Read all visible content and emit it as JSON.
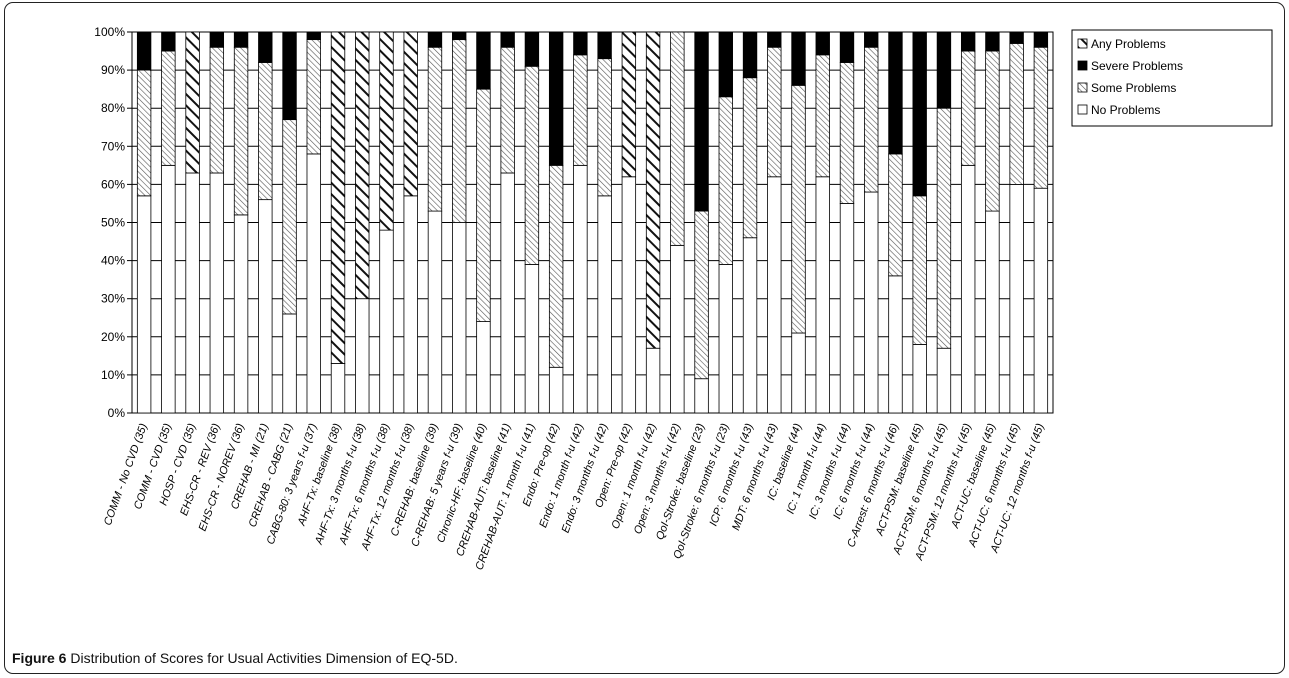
{
  "caption": {
    "label": "Figure 6",
    "text": " Distribution of Scores for Usual Activities Dimension of EQ-5D."
  },
  "chart_data": {
    "type": "bar",
    "stacked": true,
    "percent": true,
    "title": "",
    "xlabel": "",
    "ylabel": "",
    "ylim": [
      0,
      100
    ],
    "yticks": [
      "0%",
      "10%",
      "20%",
      "30%",
      "40%",
      "50%",
      "60%",
      "70%",
      "80%",
      "90%",
      "100%"
    ],
    "grid": true,
    "legend_position": "top-right",
    "legend": [
      {
        "name": "Any Problems",
        "key": "any"
      },
      {
        "name": "Severe Problems",
        "key": "severe"
      },
      {
        "name": "Some Problems",
        "key": "some"
      },
      {
        "name": "No Problems",
        "key": "none"
      }
    ],
    "categories": [
      "COMM - No CVD (35)",
      "COMM - CVD (35)",
      "HOSP - CVD (35)",
      "EHS-CR - REV (36)",
      "EHS-CR - NOREV (36)",
      "CREHAB - MI (21)",
      "CREHAB - CABG (21)",
      "CABG-80: 3 years f-u (37)",
      "AHF-Tx: baseline (38)",
      "AHF-Tx: 3 months f-u (38)",
      "AHF-Tx: 6 months f-u (38)",
      "AHF-Tx: 12 months f-u (38)",
      "C-REHAB: baseline (39)",
      "C-REHAB: 5 years f-u (39)",
      "Chronic-HF: baseline (40)",
      "CREHAB-AUT: baseline (41)",
      "CREHAB-AUT: 1 month f-u (41)",
      "Endo: Pre-op (42)",
      "Endo: 1 month f-u (42)",
      "Endo: 3 months f-u (42)",
      "Open: Pre-op (42)",
      "Open: 1 month f-u (42)",
      "Open: 3 months f-u (42)",
      "QoI-Stroke: baseline (23)",
      "QoI-Stroke: 6 months f-u (23)",
      "ICP: 6 months f-u (43)",
      "MDT: 6 months f-u (43)",
      "IC: baseline (44)",
      "IC: 1 month f-u (44)",
      "IC: 3 months f-u (44)",
      "IC: 6 months f-u (44)",
      "C-Arrest: 6 months f-u (46)",
      "ACT-PSM: baseline (45)",
      "ACT-PSM: 6 months f-u (45)",
      "ACT-PSM: 12 months f-u (45)",
      "ACT-UC: baseline (45)",
      "ACT-UC: 6 months f-u (45)",
      "ACT-UC: 12 months f-u (45)"
    ],
    "series": [
      {
        "name": "No Problems",
        "values": [
          57,
          65,
          63,
          63,
          52,
          56,
          26,
          68,
          13,
          30,
          48,
          57,
          53,
          50,
          24,
          63,
          39,
          12,
          65,
          57,
          62,
          17,
          44,
          9,
          39,
          46,
          62,
          21,
          62,
          55,
          58,
          36,
          18,
          17,
          65,
          53,
          60,
          59
        ]
      },
      {
        "name": "Some Problems",
        "values": [
          33,
          30,
          0,
          33,
          44,
          36,
          51,
          30,
          0,
          0,
          0,
          0,
          43,
          48,
          61,
          33,
          52,
          53,
          29,
          36,
          0,
          0,
          56,
          44,
          44,
          42,
          34,
          65,
          32,
          37,
          38,
          32,
          39,
          63,
          30,
          42,
          37,
          37
        ]
      },
      {
        "name": "Severe Problems",
        "values": [
          10,
          5,
          0,
          4,
          4,
          8,
          23,
          2,
          0,
          0,
          0,
          0,
          4,
          2,
          15,
          4,
          9,
          35,
          6,
          7,
          0,
          0,
          0,
          47,
          17,
          12,
          4,
          14,
          6,
          8,
          4,
          32,
          43,
          20,
          5,
          5,
          3,
          4
        ]
      },
      {
        "name": "Any Problems",
        "values": [
          0,
          0,
          37,
          0,
          0,
          0,
          0,
          0,
          87,
          70,
          52,
          43,
          0,
          0,
          0,
          0,
          0,
          0,
          0,
          0,
          38,
          83,
          0,
          0,
          0,
          0,
          0,
          0,
          0,
          0,
          0,
          0,
          0,
          0,
          0,
          0,
          0,
          0
        ]
      }
    ]
  }
}
